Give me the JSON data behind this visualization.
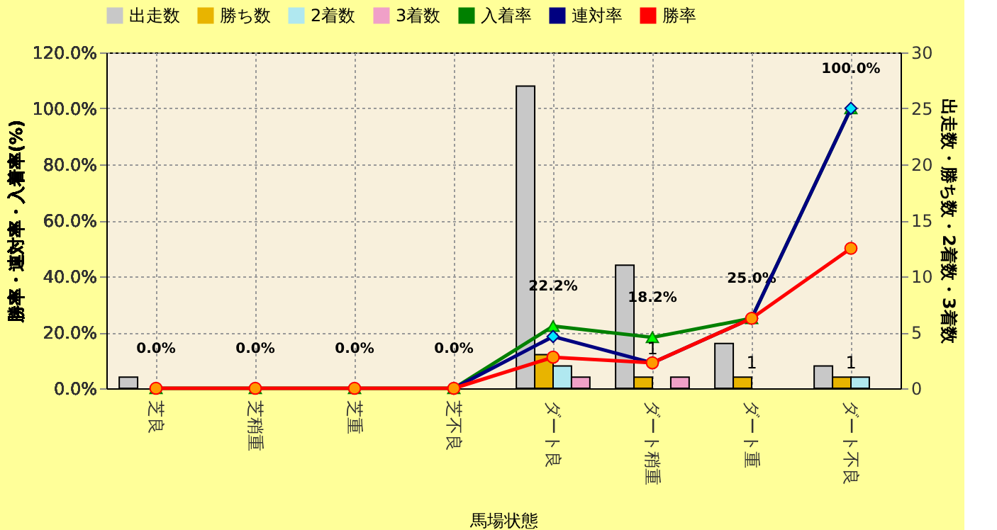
{
  "chart_data": {
    "type": "bar",
    "xlabel": "馬場状態",
    "ylabel": "勝率・連対率・入着率(%)",
    "y2label": "出走数・勝ち数・2着数・3着数",
    "categories": [
      "芝良",
      "芝稍重",
      "芝重",
      "芝不良",
      "ダート良",
      "ダート稍重",
      "ダート重",
      "ダート不良"
    ],
    "series": [
      {
        "name": "出走数",
        "axis": "y2",
        "color": "#c8c8c8",
        "values": [
          1,
          0,
          0,
          0,
          27,
          11,
          4,
          2
        ]
      },
      {
        "name": "勝ち数",
        "axis": "y2",
        "color": "#e8b400",
        "values": [
          0,
          0,
          0,
          0,
          3,
          1,
          1,
          1
        ]
      },
      {
        "name": "2着数",
        "axis": "y2",
        "color": "#b0e8f0",
        "values": [
          0,
          0,
          0,
          0,
          2,
          0,
          0,
          1
        ]
      },
      {
        "name": "3着数",
        "axis": "y2",
        "color": "#f0a0c8",
        "values": [
          0,
          0,
          0,
          0,
          1,
          1,
          0,
          0
        ]
      },
      {
        "name": "入着率",
        "type": "line",
        "color": "#008000",
        "marker": "triangle",
        "values": [
          0,
          0,
          0,
          0,
          22.2,
          18.2,
          25.0,
          100.0
        ],
        "value_labels": [
          "0.0%",
          "0.0%",
          "0.0%",
          "0.0%",
          "22.2%",
          "18.2%",
          "25.0%",
          "100.0%"
        ]
      },
      {
        "name": "連対率",
        "type": "line",
        "color": "#000080",
        "marker": "diamond",
        "values": [
          null,
          null,
          null,
          0,
          18.5,
          9.1,
          25.0,
          100.0
        ]
      },
      {
        "name": "勝率",
        "type": "line",
        "color": "#ff0000",
        "marker": "circle",
        "values": [
          0,
          0,
          0,
          0,
          11.1,
          9.1,
          25.0,
          50.0
        ]
      }
    ],
    "ylim": [
      0,
      120
    ],
    "yticks": [
      {
        "value": 0,
        "label": "0.0%"
      },
      {
        "value": 20,
        "label": "20.0%"
      },
      {
        "value": 40,
        "label": "40.0%"
      },
      {
        "value": 60,
        "label": "60.0%"
      },
      {
        "value": 80,
        "label": "80.0%"
      },
      {
        "value": 100,
        "label": "100.0%"
      },
      {
        "value": 120,
        "label": "120.0%"
      }
    ],
    "y2lim": [
      0,
      30
    ],
    "y2ticks": [
      0,
      5,
      10,
      15,
      20,
      25,
      30
    ],
    "annotations": [
      {
        "text": "1",
        "x": "ダート稍重",
        "y": 9.1
      },
      {
        "text": "1",
        "x": "ダート重",
        "y": 4
      },
      {
        "text": "1",
        "x": "ダート不良",
        "y": 4
      }
    ],
    "grid": true,
    "legend": "top"
  }
}
